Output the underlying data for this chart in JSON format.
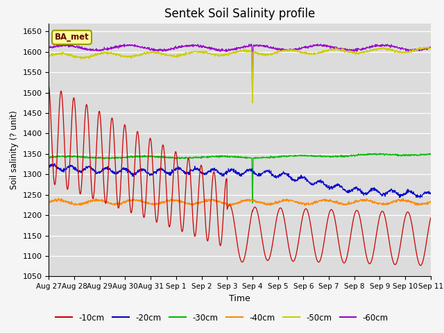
{
  "title": "Sentek Soil Salinity profile",
  "xlabel": "Time",
  "ylabel": "Soil salinity (? unit)",
  "ylim": [
    1050,
    1670
  ],
  "yticks": [
    1050,
    1100,
    1150,
    1200,
    1250,
    1300,
    1350,
    1400,
    1450,
    1500,
    1550,
    1600,
    1650
  ],
  "bg_color": "#dcdcdc",
  "line_colors": {
    "-10cm": "#cc0000",
    "-20cm": "#0000cc",
    "-30cm": "#00bb00",
    "-40cm": "#ff8800",
    "-50cm": "#cccc00",
    "-60cm": "#9900cc"
  },
  "legend_labels": [
    "-10cm",
    "-20cm",
    "-30cm",
    "-40cm",
    "-50cm",
    "-60cm"
  ],
  "annotation_label": "BA_met",
  "num_days": 15,
  "xtick_labels": [
    "Aug 27",
    "Aug 28",
    "Aug 29",
    "Aug 30",
    "Aug 31",
    "Sep 1",
    "Sep 2",
    "Sep 3",
    "Sep 4",
    "Sep 5",
    "Sep 6",
    "Sep 7",
    "Sep 8",
    "Sep 9",
    "Sep 10",
    "Sep 11"
  ]
}
